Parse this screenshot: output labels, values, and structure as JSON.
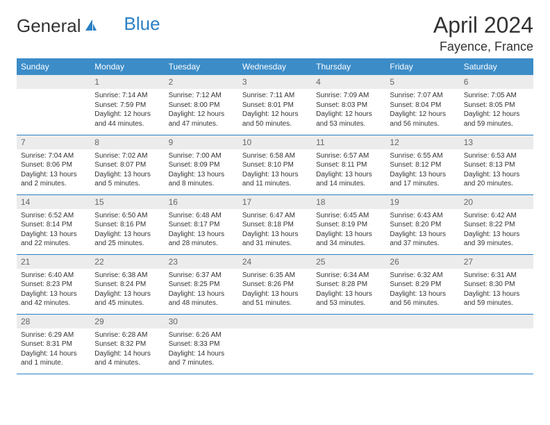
{
  "logo": {
    "text1": "General",
    "text2": "Blue"
  },
  "title": "April 2024",
  "location": "Fayence, France",
  "colors": {
    "header_bg": "#3c8cc8",
    "border": "#2a7fc4",
    "daynum_bg": "#ececec"
  },
  "weekdays": [
    "Sunday",
    "Monday",
    "Tuesday",
    "Wednesday",
    "Thursday",
    "Friday",
    "Saturday"
  ],
  "weeks": [
    [
      null,
      {
        "n": "1",
        "sr": "Sunrise: 7:14 AM",
        "ss": "Sunset: 7:59 PM",
        "d1": "Daylight: 12 hours",
        "d2": "and 44 minutes."
      },
      {
        "n": "2",
        "sr": "Sunrise: 7:12 AM",
        "ss": "Sunset: 8:00 PM",
        "d1": "Daylight: 12 hours",
        "d2": "and 47 minutes."
      },
      {
        "n": "3",
        "sr": "Sunrise: 7:11 AM",
        "ss": "Sunset: 8:01 PM",
        "d1": "Daylight: 12 hours",
        "d2": "and 50 minutes."
      },
      {
        "n": "4",
        "sr": "Sunrise: 7:09 AM",
        "ss": "Sunset: 8:03 PM",
        "d1": "Daylight: 12 hours",
        "d2": "and 53 minutes."
      },
      {
        "n": "5",
        "sr": "Sunrise: 7:07 AM",
        "ss": "Sunset: 8:04 PM",
        "d1": "Daylight: 12 hours",
        "d2": "and 56 minutes."
      },
      {
        "n": "6",
        "sr": "Sunrise: 7:05 AM",
        "ss": "Sunset: 8:05 PM",
        "d1": "Daylight: 12 hours",
        "d2": "and 59 minutes."
      }
    ],
    [
      {
        "n": "7",
        "sr": "Sunrise: 7:04 AM",
        "ss": "Sunset: 8:06 PM",
        "d1": "Daylight: 13 hours",
        "d2": "and 2 minutes."
      },
      {
        "n": "8",
        "sr": "Sunrise: 7:02 AM",
        "ss": "Sunset: 8:07 PM",
        "d1": "Daylight: 13 hours",
        "d2": "and 5 minutes."
      },
      {
        "n": "9",
        "sr": "Sunrise: 7:00 AM",
        "ss": "Sunset: 8:09 PM",
        "d1": "Daylight: 13 hours",
        "d2": "and 8 minutes."
      },
      {
        "n": "10",
        "sr": "Sunrise: 6:58 AM",
        "ss": "Sunset: 8:10 PM",
        "d1": "Daylight: 13 hours",
        "d2": "and 11 minutes."
      },
      {
        "n": "11",
        "sr": "Sunrise: 6:57 AM",
        "ss": "Sunset: 8:11 PM",
        "d1": "Daylight: 13 hours",
        "d2": "and 14 minutes."
      },
      {
        "n": "12",
        "sr": "Sunrise: 6:55 AM",
        "ss": "Sunset: 8:12 PM",
        "d1": "Daylight: 13 hours",
        "d2": "and 17 minutes."
      },
      {
        "n": "13",
        "sr": "Sunrise: 6:53 AM",
        "ss": "Sunset: 8:13 PM",
        "d1": "Daylight: 13 hours",
        "d2": "and 20 minutes."
      }
    ],
    [
      {
        "n": "14",
        "sr": "Sunrise: 6:52 AM",
        "ss": "Sunset: 8:14 PM",
        "d1": "Daylight: 13 hours",
        "d2": "and 22 minutes."
      },
      {
        "n": "15",
        "sr": "Sunrise: 6:50 AM",
        "ss": "Sunset: 8:16 PM",
        "d1": "Daylight: 13 hours",
        "d2": "and 25 minutes."
      },
      {
        "n": "16",
        "sr": "Sunrise: 6:48 AM",
        "ss": "Sunset: 8:17 PM",
        "d1": "Daylight: 13 hours",
        "d2": "and 28 minutes."
      },
      {
        "n": "17",
        "sr": "Sunrise: 6:47 AM",
        "ss": "Sunset: 8:18 PM",
        "d1": "Daylight: 13 hours",
        "d2": "and 31 minutes."
      },
      {
        "n": "18",
        "sr": "Sunrise: 6:45 AM",
        "ss": "Sunset: 8:19 PM",
        "d1": "Daylight: 13 hours",
        "d2": "and 34 minutes."
      },
      {
        "n": "19",
        "sr": "Sunrise: 6:43 AM",
        "ss": "Sunset: 8:20 PM",
        "d1": "Daylight: 13 hours",
        "d2": "and 37 minutes."
      },
      {
        "n": "20",
        "sr": "Sunrise: 6:42 AM",
        "ss": "Sunset: 8:22 PM",
        "d1": "Daylight: 13 hours",
        "d2": "and 39 minutes."
      }
    ],
    [
      {
        "n": "21",
        "sr": "Sunrise: 6:40 AM",
        "ss": "Sunset: 8:23 PM",
        "d1": "Daylight: 13 hours",
        "d2": "and 42 minutes."
      },
      {
        "n": "22",
        "sr": "Sunrise: 6:38 AM",
        "ss": "Sunset: 8:24 PM",
        "d1": "Daylight: 13 hours",
        "d2": "and 45 minutes."
      },
      {
        "n": "23",
        "sr": "Sunrise: 6:37 AM",
        "ss": "Sunset: 8:25 PM",
        "d1": "Daylight: 13 hours",
        "d2": "and 48 minutes."
      },
      {
        "n": "24",
        "sr": "Sunrise: 6:35 AM",
        "ss": "Sunset: 8:26 PM",
        "d1": "Daylight: 13 hours",
        "d2": "and 51 minutes."
      },
      {
        "n": "25",
        "sr": "Sunrise: 6:34 AM",
        "ss": "Sunset: 8:28 PM",
        "d1": "Daylight: 13 hours",
        "d2": "and 53 minutes."
      },
      {
        "n": "26",
        "sr": "Sunrise: 6:32 AM",
        "ss": "Sunset: 8:29 PM",
        "d1": "Daylight: 13 hours",
        "d2": "and 56 minutes."
      },
      {
        "n": "27",
        "sr": "Sunrise: 6:31 AM",
        "ss": "Sunset: 8:30 PM",
        "d1": "Daylight: 13 hours",
        "d2": "and 59 minutes."
      }
    ],
    [
      {
        "n": "28",
        "sr": "Sunrise: 6:29 AM",
        "ss": "Sunset: 8:31 PM",
        "d1": "Daylight: 14 hours",
        "d2": "and 1 minute."
      },
      {
        "n": "29",
        "sr": "Sunrise: 6:28 AM",
        "ss": "Sunset: 8:32 PM",
        "d1": "Daylight: 14 hours",
        "d2": "and 4 minutes."
      },
      {
        "n": "30",
        "sr": "Sunrise: 6:26 AM",
        "ss": "Sunset: 8:33 PM",
        "d1": "Daylight: 14 hours",
        "d2": "and 7 minutes."
      },
      null,
      null,
      null,
      null
    ]
  ]
}
